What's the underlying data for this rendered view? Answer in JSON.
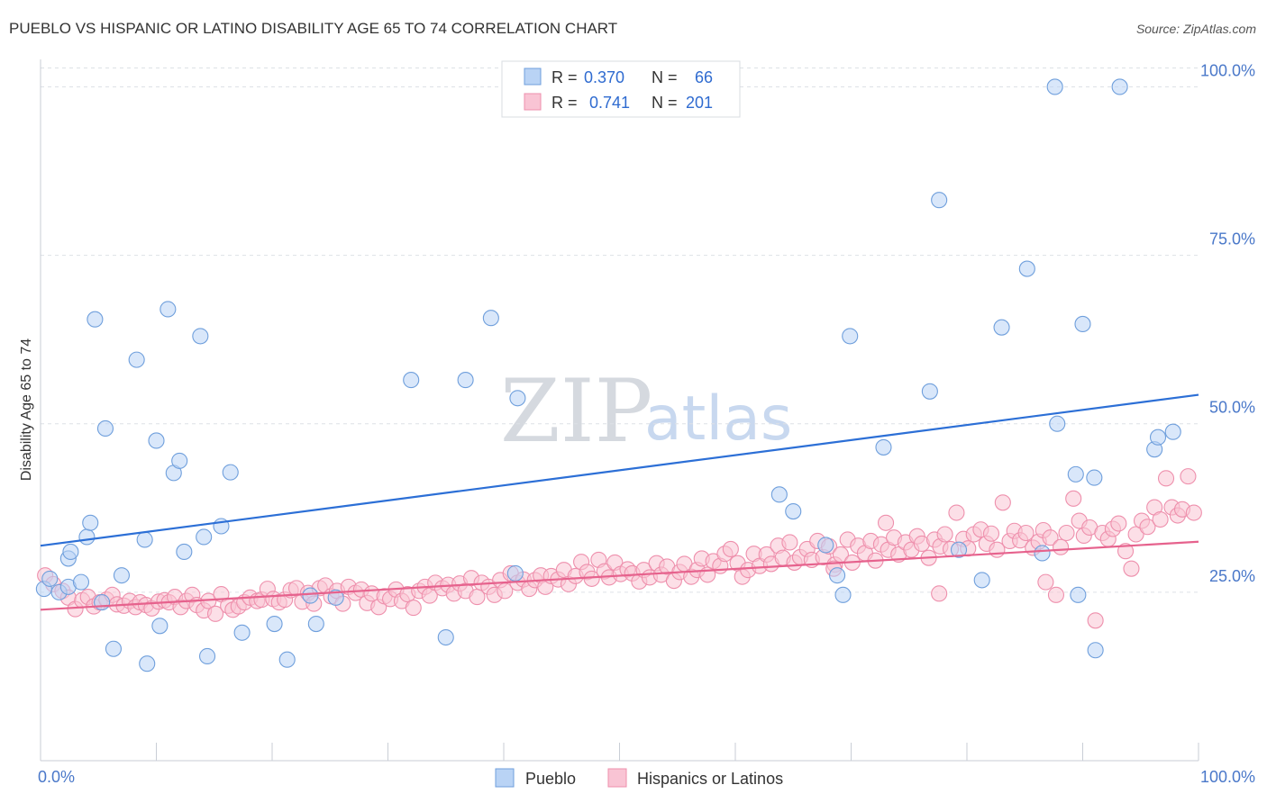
{
  "title": "PUEBLO VS HISPANIC OR LATINO DISABILITY AGE 65 TO 74 CORRELATION CHART",
  "source": "Source: ZipAtlas.com",
  "watermark": {
    "zip": "ZIP",
    "atlas": "atlas"
  },
  "colors": {
    "pueblo_fill": "#b9d3f5",
    "pueblo_stroke": "#6f9fdc",
    "pueblo_line": "#2c6fd6",
    "hisp_fill": "#f9c4d4",
    "hisp_stroke": "#ee8fac",
    "hisp_line": "#e6628d",
    "grid": "#dde1e6",
    "axis_text": "#4a78c9"
  },
  "legend_top": {
    "rows": [
      {
        "r_label": "R =",
        "r_value": "0.370",
        "n_label": "N =",
        "n_value": "66"
      },
      {
        "r_label": "R =",
        "r_value": "0.741",
        "n_label": "N =",
        "n_value": "201"
      }
    ]
  },
  "chart_data": {
    "type": "scatter",
    "title": "PUEBLO VS HISPANIC OR LATINO DISABILITY AGE 65 TO 74 CORRELATION CHART",
    "xlabel": "",
    "ylabel": "Disability Age 65 to 74",
    "xlim": [
      0,
      100
    ],
    "ylim": [
      0,
      103
    ],
    "x_tick_labels": [
      "0.0%",
      "100.0%"
    ],
    "y_ticks": [
      25,
      50,
      75,
      100
    ],
    "y_tick_labels": [
      "25.0%",
      "50.0%",
      "75.0%",
      "100.0%"
    ],
    "grid": true,
    "legend_position": "bottom",
    "series": [
      {
        "name": "Pueblo",
        "points": [
          [
            0.3,
            25.5
          ],
          [
            0.8,
            27
          ],
          [
            1.6,
            25
          ],
          [
            2.4,
            25.8
          ],
          [
            2.4,
            30
          ],
          [
            2.6,
            31
          ],
          [
            3.5,
            26.5
          ],
          [
            4,
            33.2
          ],
          [
            4.3,
            35.3
          ],
          [
            4.7,
            65.5
          ],
          [
            5.3,
            23.5
          ],
          [
            5.6,
            49.3
          ],
          [
            6.3,
            16.6
          ],
          [
            7,
            27.5
          ],
          [
            8.3,
            59.5
          ],
          [
            9,
            32.8
          ],
          [
            9.2,
            14.4
          ],
          [
            10,
            47.5
          ],
          [
            10.3,
            20
          ],
          [
            11,
            67
          ],
          [
            11.5,
            42.7
          ],
          [
            12,
            44.5
          ],
          [
            12.4,
            31
          ],
          [
            13.8,
            63
          ],
          [
            14.1,
            33.2
          ],
          [
            14.4,
            15.5
          ],
          [
            15.6,
            34.8
          ],
          [
            16.4,
            42.8
          ],
          [
            17.4,
            19
          ],
          [
            20.2,
            20.3
          ],
          [
            21.3,
            15
          ],
          [
            23.3,
            24.5
          ],
          [
            23.8,
            20.3
          ],
          [
            25.5,
            24.2
          ],
          [
            32,
            56.5
          ],
          [
            35,
            18.3
          ],
          [
            36.7,
            56.5
          ],
          [
            38.9,
            65.7
          ],
          [
            41,
            27.8
          ],
          [
            41.2,
            53.8
          ],
          [
            45.6,
            100
          ],
          [
            63.8,
            39.5
          ],
          [
            65,
            37
          ],
          [
            67.8,
            32
          ],
          [
            68.8,
            27.5
          ],
          [
            69.3,
            24.6
          ],
          [
            69.9,
            63
          ],
          [
            72.8,
            46.5
          ],
          [
            76.8,
            54.8
          ],
          [
            77.6,
            83.2
          ],
          [
            79.3,
            31.3
          ],
          [
            81.3,
            26.8
          ],
          [
            83,
            64.3
          ],
          [
            85.2,
            73
          ],
          [
            86.5,
            30.8
          ],
          [
            87.6,
            100
          ],
          [
            87.8,
            50
          ],
          [
            89.4,
            42.5
          ],
          [
            89.6,
            24.6
          ],
          [
            90,
            64.8
          ],
          [
            91.1,
            16.4
          ],
          [
            91,
            42
          ],
          [
            93.2,
            100
          ],
          [
            96.2,
            46.2
          ],
          [
            96.5,
            48
          ],
          [
            97.8,
            48.8
          ]
        ]
      },
      {
        "name": "Hispanics or Latinos",
        "points": [
          [
            0.4,
            27.5
          ],
          [
            1.1,
            26.2
          ],
          [
            1.9,
            25.2
          ],
          [
            2.4,
            24.2
          ],
          [
            3,
            22.5
          ],
          [
            3.6,
            23.8
          ],
          [
            4.1,
            24.3
          ],
          [
            4.6,
            22.9
          ],
          [
            5.1,
            23.5
          ],
          [
            5.7,
            23.9
          ],
          [
            6.2,
            24.6
          ],
          [
            6.6,
            23.2
          ],
          [
            7.2,
            23
          ],
          [
            7.7,
            23.7
          ],
          [
            8.2,
            22.8
          ],
          [
            8.6,
            23.5
          ],
          [
            9.1,
            23.1
          ],
          [
            9.6,
            22.6
          ],
          [
            10.2,
            23.6
          ],
          [
            10.7,
            23.8
          ],
          [
            11.1,
            23.5
          ],
          [
            11.6,
            24.3
          ],
          [
            12.1,
            22.8
          ],
          [
            12.6,
            23.7
          ],
          [
            13.1,
            24.6
          ],
          [
            13.5,
            23.1
          ],
          [
            14.1,
            22.3
          ],
          [
            14.5,
            23.7
          ],
          [
            15.1,
            21.8
          ],
          [
            15.6,
            24.7
          ],
          [
            16.2,
            23
          ],
          [
            16.6,
            22.4
          ],
          [
            17.1,
            22.9
          ],
          [
            17.6,
            23.5
          ],
          [
            18.1,
            24.2
          ],
          [
            18.7,
            23.7
          ],
          [
            19.1,
            23.9
          ],
          [
            19.6,
            25.5
          ],
          [
            20.1,
            24
          ],
          [
            20.6,
            23.5
          ],
          [
            21.1,
            23.9
          ],
          [
            21.6,
            25.3
          ],
          [
            22.1,
            25.6
          ],
          [
            22.6,
            23.6
          ],
          [
            23.1,
            24.9
          ],
          [
            23.6,
            23.3
          ],
          [
            24.1,
            25.6
          ],
          [
            24.6,
            26
          ],
          [
            25.1,
            24.4
          ],
          [
            25.6,
            25.2
          ],
          [
            26.1,
            23.3
          ],
          [
            26.6,
            25.8
          ],
          [
            27.2,
            24.9
          ],
          [
            27.7,
            25.4
          ],
          [
            28.2,
            23.4
          ],
          [
            28.6,
            24.8
          ],
          [
            29.2,
            22.8
          ],
          [
            29.7,
            24.4
          ],
          [
            30.2,
            24
          ],
          [
            30.7,
            25.4
          ],
          [
            31.2,
            23.7
          ],
          [
            31.7,
            24.7
          ],
          [
            32.2,
            22.7
          ],
          [
            32.7,
            25.2
          ],
          [
            33.2,
            25.8
          ],
          [
            33.6,
            24.5
          ],
          [
            34.1,
            26.4
          ],
          [
            34.7,
            25.6
          ],
          [
            35.2,
            26.1
          ],
          [
            35.7,
            24.8
          ],
          [
            36.2,
            26.3
          ],
          [
            36.7,
            25.2
          ],
          [
            37.2,
            27.1
          ],
          [
            37.7,
            24.3
          ],
          [
            38.1,
            26.4
          ],
          [
            38.7,
            25.8
          ],
          [
            39.2,
            24.6
          ],
          [
            39.7,
            26.8
          ],
          [
            40.1,
            25.2
          ],
          [
            40.6,
            27.8
          ],
          [
            41.2,
            26.4
          ],
          [
            41.7,
            26.9
          ],
          [
            42.2,
            25.5
          ],
          [
            42.7,
            26.8
          ],
          [
            43.2,
            27.5
          ],
          [
            43.6,
            25.8
          ],
          [
            44.1,
            27.4
          ],
          [
            44.7,
            26.9
          ],
          [
            45.2,
            28.3
          ],
          [
            45.6,
            26.2
          ],
          [
            46.2,
            27.4
          ],
          [
            46.7,
            29.5
          ],
          [
            47.2,
            28
          ],
          [
            47.6,
            27
          ],
          [
            48.2,
            29.8
          ],
          [
            48.7,
            28.1
          ],
          [
            49.1,
            27.2
          ],
          [
            49.6,
            29.4
          ],
          [
            50.1,
            27.7
          ],
          [
            50.7,
            28.4
          ],
          [
            51.1,
            27.8
          ],
          [
            51.7,
            26.6
          ],
          [
            52.1,
            28.3
          ],
          [
            52.6,
            27.2
          ],
          [
            53.2,
            29.3
          ],
          [
            53.6,
            27.6
          ],
          [
            54.1,
            28.8
          ],
          [
            54.7,
            26.7
          ],
          [
            55.2,
            28
          ],
          [
            55.6,
            29.2
          ],
          [
            56.2,
            27.3
          ],
          [
            56.7,
            28.3
          ],
          [
            57.1,
            30
          ],
          [
            57.6,
            27.6
          ],
          [
            58.1,
            29.6
          ],
          [
            58.7,
            28.9
          ],
          [
            59.1,
            30.7
          ],
          [
            59.6,
            31.4
          ],
          [
            60.2,
            29.3
          ],
          [
            60.6,
            27.3
          ],
          [
            61.1,
            28.3
          ],
          [
            61.6,
            30.7
          ],
          [
            62.1,
            28.9
          ],
          [
            62.7,
            30.6
          ],
          [
            63.1,
            29.2
          ],
          [
            63.7,
            31.9
          ],
          [
            64.1,
            30.1
          ],
          [
            64.7,
            32.4
          ],
          [
            65.1,
            29.4
          ],
          [
            65.6,
            30.2
          ],
          [
            66.2,
            31.4
          ],
          [
            66.6,
            29.8
          ],
          [
            67.1,
            32.6
          ],
          [
            67.6,
            30.2
          ],
          [
            68.1,
            31.8
          ],
          [
            68.6,
            29.1
          ],
          [
            69.1,
            30.6
          ],
          [
            69.7,
            32.8
          ],
          [
            70.1,
            29.4
          ],
          [
            70.6,
            31.9
          ],
          [
            71.2,
            30.8
          ],
          [
            71.7,
            32.6
          ],
          [
            72.1,
            29.7
          ],
          [
            72.6,
            32.1
          ],
          [
            73.2,
            31.3
          ],
          [
            73.7,
            33.1
          ],
          [
            74.1,
            30.6
          ],
          [
            74.7,
            32.4
          ],
          [
            75.2,
            31.3
          ],
          [
            75.7,
            33.3
          ],
          [
            76.1,
            32.2
          ],
          [
            76.7,
            30.1
          ],
          [
            77.2,
            32.8
          ],
          [
            77.7,
            31.8
          ],
          [
            78.1,
            33.6
          ],
          [
            78.6,
            31.4
          ],
          [
            79.1,
            36.8
          ],
          [
            79.7,
            32.9
          ],
          [
            80.1,
            31.5
          ],
          [
            80.6,
            33.6
          ],
          [
            81.2,
            34.3
          ],
          [
            81.7,
            32.2
          ],
          [
            82.1,
            33.7
          ],
          [
            82.6,
            31.3
          ],
          [
            83.1,
            38.3
          ],
          [
            83.7,
            32.6
          ],
          [
            84.1,
            34.1
          ],
          [
            84.6,
            32.7
          ],
          [
            85.1,
            33.8
          ],
          [
            85.7,
            31.6
          ],
          [
            86.2,
            32.5
          ],
          [
            86.6,
            34.2
          ],
          [
            87.2,
            33.1
          ],
          [
            87.7,
            24.6
          ],
          [
            88.1,
            31.7
          ],
          [
            88.6,
            33.8
          ],
          [
            89.2,
            38.9
          ],
          [
            89.7,
            35.6
          ],
          [
            90.1,
            33.4
          ],
          [
            90.6,
            34.6
          ],
          [
            91.1,
            20.8
          ],
          [
            91.7,
            33.8
          ],
          [
            92.2,
            32.9
          ],
          [
            92.6,
            34.4
          ],
          [
            93.1,
            35.2
          ],
          [
            93.7,
            31.1
          ],
          [
            94.2,
            28.5
          ],
          [
            94.6,
            33.6
          ],
          [
            95.1,
            35.6
          ],
          [
            95.6,
            34.7
          ],
          [
            96.2,
            37.6
          ],
          [
            96.7,
            35.8
          ],
          [
            97.2,
            41.9
          ],
          [
            97.7,
            37.6
          ],
          [
            98.2,
            36.4
          ],
          [
            98.6,
            37.3
          ],
          [
            99.1,
            42.2
          ],
          [
            99.6,
            36.8
          ],
          [
            68.5,
            28.5
          ],
          [
            73,
            35.3
          ],
          [
            77.6,
            24.8
          ],
          [
            86.8,
            26.5
          ]
        ]
      }
    ],
    "trendlines": [
      {
        "name": "Pueblo",
        "x": [
          0,
          100
        ],
        "y": [
          31.9,
          54.3
        ]
      },
      {
        "name": "Hispanics or Latinos",
        "x": [
          0,
          100
        ],
        "y": [
          22.4,
          32.5
        ]
      }
    ]
  },
  "legend_bottom": {
    "items": [
      "Pueblo",
      "Hispanics or Latinos"
    ]
  }
}
